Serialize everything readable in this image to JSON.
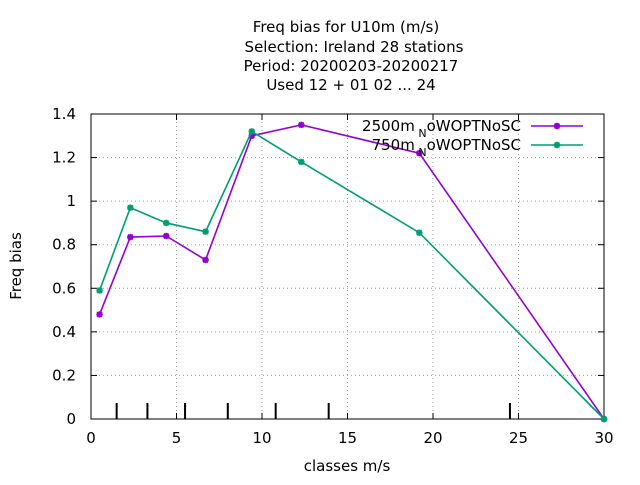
{
  "chart_data": {
    "type": "line",
    "title": [
      "Freq bias  for U10m (m/s)",
      "Selection: Ireland     28 stations",
      "Period: 20200203-20200217",
      "Used  12 + 01 02 ... 24"
    ],
    "xlabel": "classes m/s",
    "ylabel": "Freq bias",
    "xlim": [
      0,
      30
    ],
    "ylim": [
      0,
      1.4
    ],
    "xticks": [
      0,
      5,
      10,
      15,
      20,
      25,
      30
    ],
    "yticks": [
      0,
      0.2,
      0.4,
      0.6,
      0.8,
      1,
      1.2,
      1.4
    ],
    "grid": true,
    "legend_position": "top-right",
    "class_markers_x": [
      1.5,
      3.3,
      5.5,
      8.0,
      10.8,
      13.9,
      24.5
    ],
    "series": [
      {
        "name": "2500m",
        "name_sub": "N",
        "name_rest": "oWOPTNoSC",
        "color": "#9400d3",
        "x": [
          0.5,
          2.3,
          4.4,
          6.7,
          9.4,
          12.3,
          19.2,
          30.0
        ],
        "y": [
          0.48,
          0.835,
          0.84,
          0.73,
          1.3,
          1.35,
          1.22,
          0.0
        ]
      },
      {
        "name": "750m",
        "name_sub": "N",
        "name_rest": "oWOPTNoSC",
        "color": "#009e73",
        "x": [
          0.5,
          2.3,
          4.4,
          6.7,
          9.4,
          12.3,
          19.2,
          30.0
        ],
        "y": [
          0.59,
          0.97,
          0.9,
          0.86,
          1.32,
          1.18,
          0.855,
          0.0
        ]
      }
    ]
  }
}
